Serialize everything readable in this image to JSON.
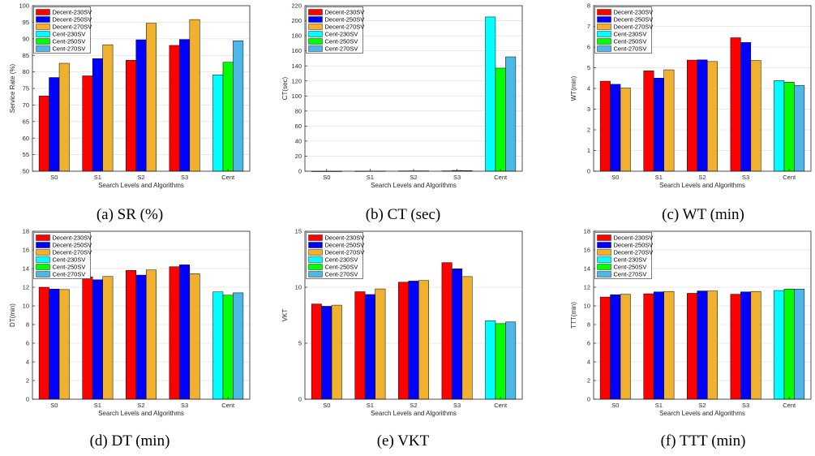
{
  "legend": [
    "Decent-230SV",
    "Decent-250SV",
    "Decent-270SV",
    "Cent-230SV",
    "Cent-250SV",
    "Cent-270SV"
  ],
  "colors": [
    "#ff0000",
    "#0000ff",
    "#f0b030",
    "#00ffff",
    "#00ff00",
    "#4db8e8"
  ],
  "chart_data": [
    {
      "type": "bar",
      "caption": "(a) SR (%)",
      "xlabel": "Search Levels and Algorithms",
      "ylabel": "Service Rate (%)",
      "ylim": [
        50,
        100
      ],
      "yticks": [
        50,
        55,
        60,
        65,
        70,
        75,
        80,
        85,
        90,
        95,
        100
      ],
      "categories": [
        "S0",
        "S1",
        "S2",
        "S3",
        "Cent"
      ],
      "series": [
        {
          "name": "Decent-230SV",
          "values": [
            72.7,
            78.8,
            83.5,
            88.0,
            null
          ]
        },
        {
          "name": "Decent-250SV",
          "values": [
            78.3,
            84.0,
            89.7,
            89.8,
            null
          ]
        },
        {
          "name": "Decent-270SV",
          "values": [
            82.6,
            88.2,
            94.7,
            95.8,
            null
          ]
        },
        {
          "name": "Cent-230SV",
          "values": [
            null,
            null,
            null,
            null,
            79.1
          ]
        },
        {
          "name": "Cent-250SV",
          "values": [
            null,
            null,
            null,
            null,
            82.9
          ]
        },
        {
          "name": "Cent-270SV",
          "values": [
            null,
            null,
            null,
            null,
            89.4
          ]
        }
      ],
      "legend_position": "top-left",
      "grid": true
    },
    {
      "type": "bar",
      "caption": "(b) CT (sec)",
      "xlabel": "Search Levels and Algorithms",
      "ylabel": "CT(sec)",
      "ylim": [
        0,
        220
      ],
      "yticks": [
        0,
        20,
        40,
        60,
        80,
        100,
        120,
        140,
        160,
        180,
        200,
        220
      ],
      "categories": [
        "S0",
        "S1",
        "S2",
        "S3",
        "Cent"
      ],
      "series": [
        {
          "name": "Decent-230SV",
          "values": [
            0.1,
            0.2,
            0.4,
            0.5,
            null
          ]
        },
        {
          "name": "Decent-250SV",
          "values": [
            0.1,
            0.3,
            0.5,
            1.0,
            null
          ]
        },
        {
          "name": "Decent-270SV",
          "values": [
            0.1,
            0.3,
            0.5,
            0.8,
            null
          ]
        },
        {
          "name": "Cent-230SV",
          "values": [
            null,
            null,
            null,
            null,
            205
          ]
        },
        {
          "name": "Cent-250SV",
          "values": [
            null,
            null,
            null,
            null,
            137
          ]
        },
        {
          "name": "Cent-270SV",
          "values": [
            null,
            null,
            null,
            null,
            152
          ]
        }
      ],
      "legend_position": "top-left",
      "grid": true
    },
    {
      "type": "bar",
      "caption": "(c) WT (min)",
      "xlabel": "Search Levels and Algorithms",
      "ylabel": "WT(min)",
      "ylim": [
        0,
        8
      ],
      "yticks": [
        0,
        1,
        2,
        3,
        4,
        5,
        6,
        7,
        8
      ],
      "categories": [
        "S0",
        "S1",
        "S2",
        "S3",
        "Cent"
      ],
      "series": [
        {
          "name": "Decent-230SV",
          "values": [
            4.35,
            4.85,
            5.37,
            6.45,
            null
          ]
        },
        {
          "name": "Decent-250SV",
          "values": [
            4.2,
            4.5,
            5.38,
            6.22,
            null
          ]
        },
        {
          "name": "Decent-270SV",
          "values": [
            4.02,
            4.9,
            5.3,
            5.35,
            null
          ]
        },
        {
          "name": "Cent-230SV",
          "values": [
            null,
            null,
            null,
            null,
            4.38
          ]
        },
        {
          "name": "Cent-250SV",
          "values": [
            null,
            null,
            null,
            null,
            4.3
          ]
        },
        {
          "name": "Cent-270SV",
          "values": [
            null,
            null,
            null,
            null,
            4.15
          ]
        }
      ],
      "legend_position": "top-left",
      "grid": true
    },
    {
      "type": "bar",
      "caption": "(d) DT (min)",
      "xlabel": "Search Levels and Algorithms",
      "ylabel": "DT(min)",
      "ylim": [
        0,
        18
      ],
      "yticks": [
        0,
        2,
        4,
        6,
        8,
        10,
        12,
        14,
        16,
        18
      ],
      "categories": [
        "S0",
        "S1",
        "S2",
        "S3",
        "Cent"
      ],
      "series": [
        {
          "name": "Decent-230SV",
          "values": [
            12.0,
            13.1,
            13.8,
            14.2,
            null
          ]
        },
        {
          "name": "Decent-250SV",
          "values": [
            11.8,
            12.8,
            13.3,
            14.4,
            null
          ]
        },
        {
          "name": "Decent-270SV",
          "values": [
            11.75,
            13.15,
            13.85,
            13.45,
            null
          ]
        },
        {
          "name": "Cent-230SV",
          "values": [
            null,
            null,
            null,
            null,
            11.5
          ]
        },
        {
          "name": "Cent-250SV",
          "values": [
            null,
            null,
            null,
            null,
            11.15
          ]
        },
        {
          "name": "Cent-270SV",
          "values": [
            null,
            null,
            null,
            null,
            11.4
          ]
        }
      ],
      "legend_position": "top-left",
      "grid": true
    },
    {
      "type": "bar",
      "caption": "(e) VKT",
      "xlabel": "Search Levels and Algorithms",
      "ylabel": "VKT",
      "ylim": [
        0,
        15
      ],
      "yticks": [
        0,
        5,
        10,
        15
      ],
      "categories": [
        "S0",
        "S1",
        "S2",
        "S3",
        "Cent"
      ],
      "series": [
        {
          "name": "Decent-230SV",
          "values": [
            8.5,
            9.6,
            10.45,
            12.2,
            null
          ]
        },
        {
          "name": "Decent-250SV",
          "values": [
            8.3,
            9.35,
            10.55,
            11.65,
            null
          ]
        },
        {
          "name": "Decent-270SV",
          "values": [
            8.4,
            9.85,
            10.6,
            10.95,
            null
          ]
        },
        {
          "name": "Cent-230SV",
          "values": [
            null,
            null,
            null,
            null,
            7.0
          ]
        },
        {
          "name": "Cent-250SV",
          "values": [
            null,
            null,
            null,
            null,
            6.75
          ]
        },
        {
          "name": "Cent-270SV",
          "values": [
            null,
            null,
            null,
            null,
            6.9
          ]
        }
      ],
      "legend_position": "top-left",
      "grid": true
    },
    {
      "type": "bar",
      "caption": "(f) TTT (min)",
      "xlabel": "Search Levels and Algorithms",
      "ylabel": "TTT(min)",
      "ylim": [
        0,
        18
      ],
      "yticks": [
        0,
        2,
        4,
        6,
        8,
        10,
        12,
        14,
        16,
        18
      ],
      "categories": [
        "S0",
        "S1",
        "S2",
        "S3",
        "Cent"
      ],
      "series": [
        {
          "name": "Decent-230SV",
          "values": [
            10.95,
            11.3,
            11.35,
            11.25,
            null
          ]
        },
        {
          "name": "Decent-250SV",
          "values": [
            11.2,
            11.5,
            11.6,
            11.5,
            null
          ]
        },
        {
          "name": "Decent-270SV",
          "values": [
            11.25,
            11.55,
            11.6,
            11.55,
            null
          ]
        },
        {
          "name": "Cent-230SV",
          "values": [
            null,
            null,
            null,
            null,
            11.65
          ]
        },
        {
          "name": "Cent-250SV",
          "values": [
            null,
            null,
            null,
            null,
            11.8
          ]
        },
        {
          "name": "Cent-270SV",
          "values": [
            null,
            null,
            null,
            null,
            11.8
          ]
        }
      ],
      "legend_position": "top-left",
      "grid": true
    }
  ]
}
